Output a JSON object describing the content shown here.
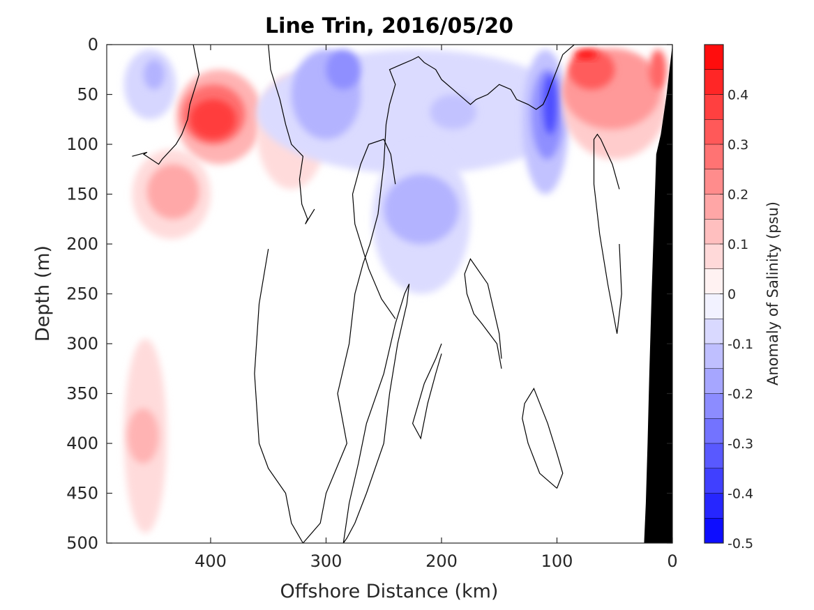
{
  "chart_data": {
    "type": "heatmap",
    "title": "Line Trin, 2016/05/20",
    "xlabel": "Offshore Distance (km)",
    "ylabel": "Depth (m)",
    "colorbar_label": "Anomaly of Salinity (psu)",
    "xlim": [
      490,
      0
    ],
    "ylim": [
      500,
      0
    ],
    "x_reversed": true,
    "y_reversed": true,
    "x_ticks": [
      400,
      300,
      200,
      100,
      0
    ],
    "y_ticks": [
      0,
      50,
      100,
      150,
      200,
      250,
      300,
      350,
      400,
      450,
      500
    ],
    "colorbar_range": [
      -0.5,
      0.5
    ],
    "colorbar_levels": [
      -0.5,
      -0.45,
      -0.4,
      -0.35,
      -0.3,
      -0.25,
      -0.2,
      -0.15,
      -0.1,
      -0.05,
      0,
      0.05,
      0.1,
      0.15,
      0.2,
      0.25,
      0.3,
      0.35,
      0.4,
      0.45,
      0.5
    ],
    "colorbar_ticks": [
      -0.5,
      -0.4,
      -0.3,
      -0.2,
      -0.1,
      0,
      0.1,
      0.2,
      0.3,
      0.4
    ],
    "colormap": {
      "negative": "#0000ff",
      "zero": "#ffffff",
      "positive": "#ff0000"
    },
    "zero_contour_color": "#000000",
    "bathymetry_color": "#000000",
    "anomaly_regions": [
      {
        "x": [
          475,
          430
        ],
        "depth": [
          5,
          75
        ],
        "value": -0.08
      },
      {
        "x": [
          458,
          440
        ],
        "depth": [
          15,
          45
        ],
        "value": -0.15
      },
      {
        "x": [
          468,
          400
        ],
        "depth": [
          105,
          195
        ],
        "value": 0.07
      },
      {
        "x": [
          455,
          410
        ],
        "depth": [
          120,
          175
        ],
        "value": 0.17
      },
      {
        "x": [
          430,
          355
        ],
        "depth": [
          25,
          120
        ],
        "value": 0.15
      },
      {
        "x": [
          425,
          370
        ],
        "depth": [
          40,
          100
        ],
        "value": 0.28
      },
      {
        "x": [
          418,
          378
        ],
        "depth": [
          55,
          95
        ],
        "value": 0.38
      },
      {
        "x": [
          360,
          300
        ],
        "depth": [
          30,
          145
        ],
        "value": 0.07
      },
      {
        "x": [
          360,
          85
        ],
        "depth": [
          5,
          130
        ],
        "value": -0.07
      },
      {
        "x": [
          330,
          270
        ],
        "depth": [
          5,
          95
        ],
        "value": -0.15
      },
      {
        "x": [
          300,
          270
        ],
        "depth": [
          5,
          45
        ],
        "value": -0.22
      },
      {
        "x": [
          260,
          175
        ],
        "depth": [
          100,
          250
        ],
        "value": -0.07
      },
      {
        "x": [
          250,
          185
        ],
        "depth": [
          130,
          200
        ],
        "value": -0.15
      },
      {
        "x": [
          210,
          170
        ],
        "depth": [
          50,
          85
        ],
        "value": -0.12
      },
      {
        "x": [
          130,
          90
        ],
        "depth": [
          5,
          150
        ],
        "value": -0.12
      },
      {
        "x": [
          122,
          95
        ],
        "depth": [
          25,
          115
        ],
        "value": -0.22
      },
      {
        "x": [
          112,
          100
        ],
        "depth": [
          30,
          90
        ],
        "value": -0.35
      },
      {
        "x": [
          95,
          5
        ],
        "depth": [
          5,
          115
        ],
        "value": 0.1
      },
      {
        "x": [
          95,
          10
        ],
        "depth": [
          5,
          85
        ],
        "value": 0.2
      },
      {
        "x": [
          90,
          50
        ],
        "depth": [
          5,
          45
        ],
        "value": 0.32
      },
      {
        "x": [
          85,
          65
        ],
        "depth": [
          5,
          15
        ],
        "value": 0.45
      },
      {
        "x": [
          20,
          5
        ],
        "depth": [
          5,
          45
        ],
        "value": 0.3
      },
      {
        "x": [
          475,
          438
        ],
        "depth": [
          295,
          490
        ],
        "value": 0.07
      },
      {
        "x": [
          472,
          445
        ],
        "depth": [
          365,
          420
        ],
        "value": 0.15
      }
    ],
    "zero_contours": [
      {
        "x": [
          415,
          410,
          418,
          420,
          425,
          430,
          442,
          445,
          458,
          455,
          468
        ],
        "depth": [
          0,
          30,
          60,
          75,
          90,
          100,
          115,
          120,
          110,
          108,
          112
        ]
      },
      {
        "x": [
          350,
          348,
          340,
          335,
          330,
          320,
          323,
          321,
          316,
          318,
          310
        ],
        "depth": [
          0,
          25,
          55,
          80,
          100,
          112,
          135,
          160,
          175,
          180,
          165
        ]
      },
      {
        "x": [
          350,
          358,
          362,
          358,
          350,
          335,
          330,
          320,
          305,
          300,
          282,
          290,
          280,
          275,
          268,
          262,
          255,
          250,
          248,
          245,
          240,
          245,
          235,
          225,
          220,
          215,
          205,
          200,
          190,
          180,
          175,
          170,
          160,
          150,
          140,
          135,
          125,
          118,
          112,
          108,
          105,
          100,
          95,
          90,
          85,
          75,
          70,
          65
        ],
        "depth": [
          205,
          260,
          330,
          400,
          425,
          450,
          480,
          500,
          480,
          450,
          400,
          350,
          300,
          250,
          220,
          200,
          170,
          120,
          80,
          60,
          40,
          25,
          20,
          15,
          12,
          18,
          25,
          35,
          45,
          55,
          60,
          55,
          50,
          40,
          45,
          55,
          60,
          65,
          60,
          50,
          40,
          25,
          10,
          5,
          0,
          0,
          0,
          0
        ]
      },
      {
        "x": [
          285,
          280,
          272,
          265,
          250,
          240,
          232,
          228,
          230,
          238,
          245,
          250,
          265,
          275,
          282,
          285
        ],
        "depth": [
          500,
          460,
          420,
          380,
          330,
          280,
          250,
          240,
          260,
          300,
          350,
          400,
          450,
          480,
          495,
          500
        ]
      },
      {
        "x": [
          240,
          252,
          263,
          275,
          277,
          270,
          263,
          250,
          244,
          240
        ],
        "depth": [
          275,
          255,
          225,
          180,
          150,
          120,
          100,
          95,
          110,
          140
        ]
      },
      {
        "x": [
          200,
          205,
          215,
          220,
          225,
          218,
          212,
          205,
          200
        ],
        "depth": [
          300,
          315,
          340,
          360,
          380,
          395,
          360,
          330,
          310
        ]
      },
      {
        "x": [
          148,
          152,
          165,
          172,
          178,
          180,
          175,
          160,
          150,
          148
        ],
        "depth": [
          325,
          300,
          280,
          270,
          250,
          230,
          215,
          240,
          290,
          315
        ]
      },
      {
        "x": [
          100,
          115,
          125,
          130,
          128,
          120,
          108,
          100,
          95,
          100
        ],
        "depth": [
          445,
          430,
          400,
          375,
          360,
          345,
          380,
          410,
          430,
          445
        ]
      },
      {
        "x": [
          46,
          52,
          58,
          62,
          65,
          68,
          68,
          63,
          56,
          48,
          44,
          46
        ],
        "depth": [
          145,
          120,
          105,
          95,
          90,
          95,
          140,
          190,
          240,
          290,
          250,
          200
        ]
      }
    ],
    "bathymetry": {
      "surface_x": 0,
      "depth_at_x": [
        [
          0,
          0
        ],
        [
          5,
          50
        ],
        [
          10,
          90
        ],
        [
          14,
          110
        ],
        [
          16,
          180
        ],
        [
          18,
          250
        ],
        [
          20,
          330
        ],
        [
          21.5,
          400
        ],
        [
          23,
          460
        ],
        [
          24.5,
          500
        ]
      ]
    }
  }
}
